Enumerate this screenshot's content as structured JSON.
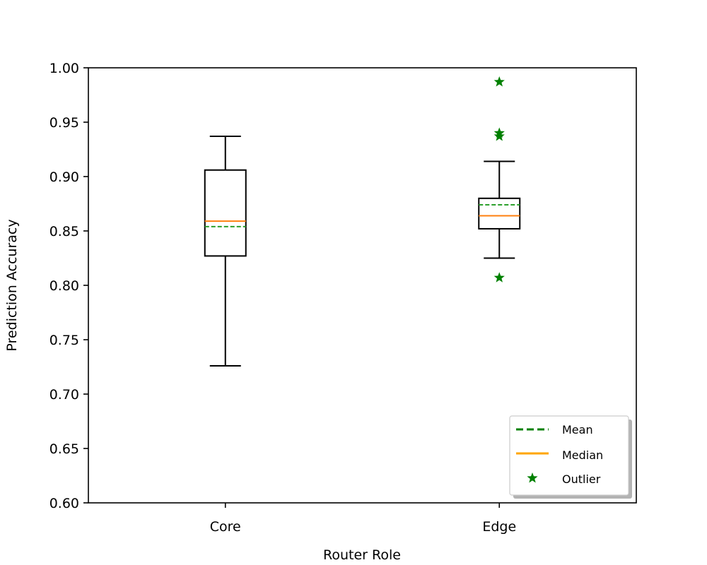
{
  "chart_data": {
    "type": "box",
    "xlabel": "Router Role",
    "ylabel": "Prediction Accuracy",
    "ylim": [
      0.6,
      1.0
    ],
    "yticks": [
      "0.60",
      "0.65",
      "0.70",
      "0.75",
      "0.80",
      "0.85",
      "0.90",
      "0.95",
      "1.00"
    ],
    "categories": [
      "Core",
      "Edge"
    ],
    "series": [
      {
        "category": "Core",
        "whisker_low": 0.726,
        "q1": 0.827,
        "median": 0.859,
        "mean": 0.854,
        "q3": 0.906,
        "whisker_high": 0.937,
        "outliers": []
      },
      {
        "category": "Edge",
        "whisker_low": 0.825,
        "q1": 0.852,
        "median": 0.864,
        "mean": 0.874,
        "q3": 0.88,
        "whisker_high": 0.914,
        "outliers": [
          0.987,
          0.94,
          0.937,
          0.807
        ]
      }
    ],
    "legend": {
      "position": "lower-right",
      "entries": [
        {
          "label": "Mean",
          "style": "dashed-line",
          "color": "#008000"
        },
        {
          "label": "Median",
          "style": "solid-line",
          "color": "#ffa500"
        },
        {
          "label": "Outlier",
          "style": "star-marker",
          "color": "#008000"
        }
      ]
    },
    "colors": {
      "box": "#000000",
      "median_in_box": "#ff7f0e",
      "mean_in_box": "#2ca02c",
      "outlier": "#008000"
    },
    "grid": false
  }
}
